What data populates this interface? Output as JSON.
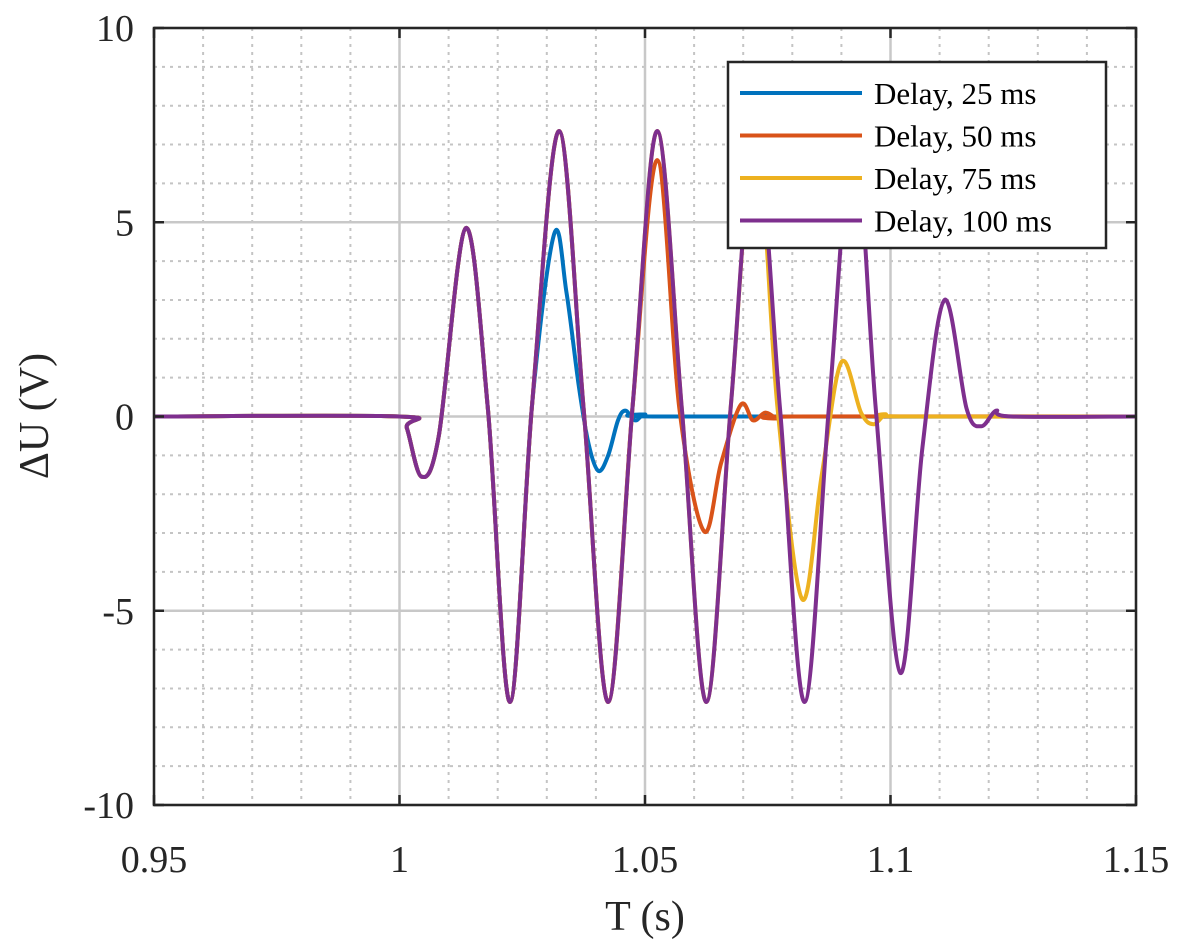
{
  "chart_data": {
    "type": "line",
    "title": "",
    "xlabel": "T (s)",
    "ylabel": "ΔU (V)",
    "xlim": [
      0.95,
      1.15
    ],
    "ylim": [
      -10,
      10
    ],
    "xticks": [
      0.95,
      1.0,
      1.05,
      1.1,
      1.15
    ],
    "xtick_labels": [
      "0.95",
      "1",
      "1.05",
      "1.1",
      "1.15"
    ],
    "yticks": [
      -10,
      -5,
      0,
      5,
      10
    ],
    "ytick_labels": [
      "-10",
      "-5",
      "0",
      "5",
      "10"
    ],
    "grid": true,
    "minor_grid": true,
    "legend_position": "top-right",
    "series": [
      {
        "name": "Delay, 25 ms",
        "color": "#0072BD",
        "x": [
          0.95,
          1.0,
          1.0015,
          1.0045,
          1.008,
          1.0135,
          1.018,
          1.0225,
          1.027,
          1.0315,
          1.034,
          1.0365,
          1.0385,
          1.0405,
          1.0425,
          1.0445,
          1.046,
          1.048,
          1.05,
          1.055,
          1.15
        ],
        "y": [
          0,
          0,
          -0.3,
          -1.55,
          -0.5,
          4.85,
          0.2,
          -7.35,
          0.3,
          4.7,
          3.2,
          0.8,
          -0.7,
          -1.4,
          -1.0,
          -0.1,
          0.15,
          -0.1,
          0.05,
          0,
          0
        ]
      },
      {
        "name": "Delay, 50 ms",
        "color": "#D95319",
        "x": [
          0.95,
          1.0,
          1.0015,
          1.0045,
          1.008,
          1.0135,
          1.018,
          1.0225,
          1.027,
          1.0325,
          1.0375,
          1.0425,
          1.0475,
          1.0525,
          1.057,
          1.062,
          1.0655,
          1.0695,
          1.072,
          1.0745,
          1.077,
          1.08,
          1.15
        ],
        "y": [
          0,
          0,
          -0.3,
          -1.55,
          -0.5,
          4.85,
          0.2,
          -7.35,
          0.3,
          7.35,
          0.2,
          -7.35,
          0.3,
          6.6,
          0.2,
          -2.95,
          -1.2,
          0.3,
          -0.1,
          0.1,
          -0.05,
          0,
          0
        ]
      },
      {
        "name": "Delay, 75 ms",
        "color": "#EDB120",
        "x": [
          0.95,
          1.0,
          1.0015,
          1.0045,
          1.008,
          1.0135,
          1.018,
          1.0225,
          1.027,
          1.0325,
          1.0375,
          1.0425,
          1.0475,
          1.0525,
          1.0575,
          1.0625,
          1.0675,
          1.0725,
          1.077,
          1.082,
          1.086,
          1.09,
          1.094,
          1.0965,
          1.099,
          1.102,
          1.15
        ],
        "y": [
          0,
          0,
          -0.3,
          -1.55,
          -0.5,
          4.85,
          0.2,
          -7.35,
          0.3,
          7.35,
          0.2,
          -7.35,
          0.3,
          7.35,
          0.2,
          -7.35,
          0.3,
          7.35,
          0.2,
          -4.7,
          -1.5,
          1.4,
          0.1,
          -0.2,
          0.05,
          0,
          0
        ]
      },
      {
        "name": "Delay, 100 ms",
        "color": "#7E2F8E",
        "x": [
          0.95,
          1.0,
          1.0015,
          1.0045,
          1.008,
          1.0135,
          1.018,
          1.0225,
          1.027,
          1.0325,
          1.0375,
          1.0425,
          1.0475,
          1.0525,
          1.0575,
          1.0625,
          1.0675,
          1.0725,
          1.0775,
          1.0825,
          1.0875,
          1.0925,
          1.097,
          1.102,
          1.1065,
          1.111,
          1.1155,
          1.1185,
          1.1215,
          1.1245,
          1.15
        ],
        "y": [
          0,
          0,
          -0.3,
          -1.55,
          -0.5,
          4.85,
          0.2,
          -7.35,
          0.3,
          7.35,
          0.2,
          -7.35,
          0.3,
          7.35,
          0.2,
          -7.35,
          0.3,
          7.35,
          0.2,
          -7.35,
          0.3,
          7.35,
          0.2,
          -6.6,
          -0.8,
          3.0,
          0.2,
          -0.25,
          0.15,
          0,
          0
        ]
      }
    ]
  }
}
